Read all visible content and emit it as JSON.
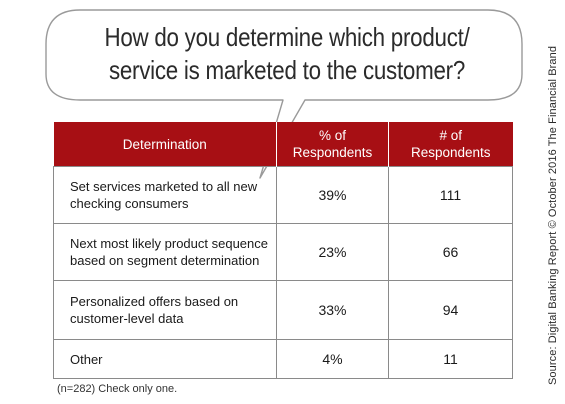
{
  "bubble": {
    "title_line1": "How do you determine which product/",
    "title_line2": "service is marketed to the customer?"
  },
  "chart_data": {
    "type": "table",
    "title": "How do you determine which product/ service is marketed to the customer?",
    "columns": [
      "Determination",
      "% of Respondents",
      "# of Respondents"
    ],
    "header": {
      "col1": "Determination",
      "col2_line1": "% of",
      "col2_line2": "Respondents",
      "col3_line1": "# of",
      "col3_line2": "Respondents"
    },
    "rows": [
      {
        "label_line1": "Set services marketed to all new",
        "label_line2": "checking consumers",
        "percent": "39%",
        "count": "111"
      },
      {
        "label_line1": "Next most likely product sequence",
        "label_line2": "based on segment determination",
        "percent": "23%",
        "count": "66"
      },
      {
        "label_line1": "Personalized offers based on",
        "label_line2": "customer-level data",
        "percent": "33%",
        "count": "94"
      },
      {
        "label_line1": "Other",
        "label_line2": "",
        "percent": "4%",
        "count": "11"
      }
    ]
  },
  "footnote": "(n=282) Check only one.",
  "source": "Source: Digital Banking Report © October 2016 The Financial Brand",
  "colors": {
    "header_background": "#a70f14",
    "header_text": "#ffffff",
    "grid_line": "#8a8a8a",
    "bubble_outline": "#9a9a9a"
  }
}
